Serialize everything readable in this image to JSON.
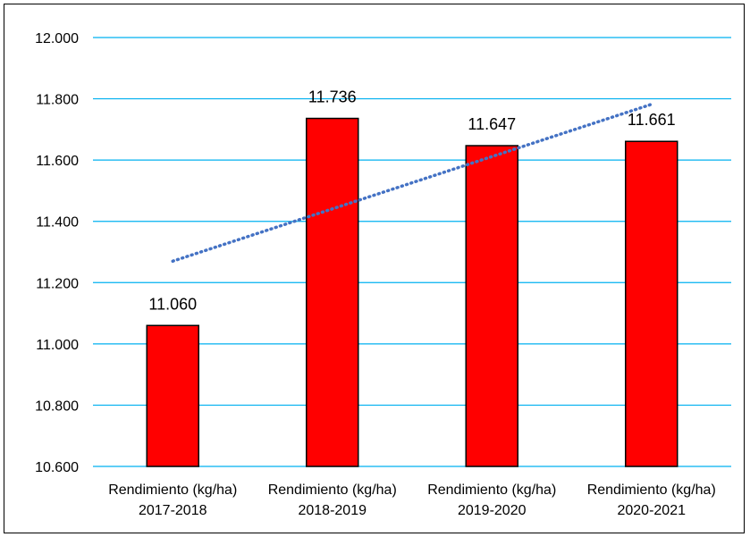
{
  "chart_data": {
    "type": "bar",
    "categories": [
      [
        "Rendimiento (kg/ha)",
        "2017-2018"
      ],
      [
        "Rendimiento (kg/ha)",
        "2018-2019"
      ],
      [
        "Rendimiento (kg/ha)",
        "2019-2020"
      ],
      [
        "Rendimiento (kg/ha)",
        "2020-2021"
      ]
    ],
    "values": [
      11060,
      11736,
      11647,
      11661
    ],
    "data_labels": [
      "11.060",
      "11.736",
      "11.647",
      "11.661"
    ],
    "ylim": [
      10600,
      12000
    ],
    "yticks": [
      10600,
      10800,
      11000,
      11200,
      11400,
      11600,
      11800,
      12000
    ],
    "ytick_labels": [
      "10.600",
      "10.800",
      "11.000",
      "11.200",
      "11.400",
      "11.600",
      "11.800",
      "12.000"
    ],
    "trendline": {
      "type": "linear",
      "style": "dotted",
      "start": 11270,
      "end": 11782
    },
    "grid": true,
    "legend": "none",
    "colors": {
      "bar": "#ff0000",
      "bar_border": "#000000",
      "grid": "#00b0f0",
      "trend": "#4472c4"
    }
  }
}
